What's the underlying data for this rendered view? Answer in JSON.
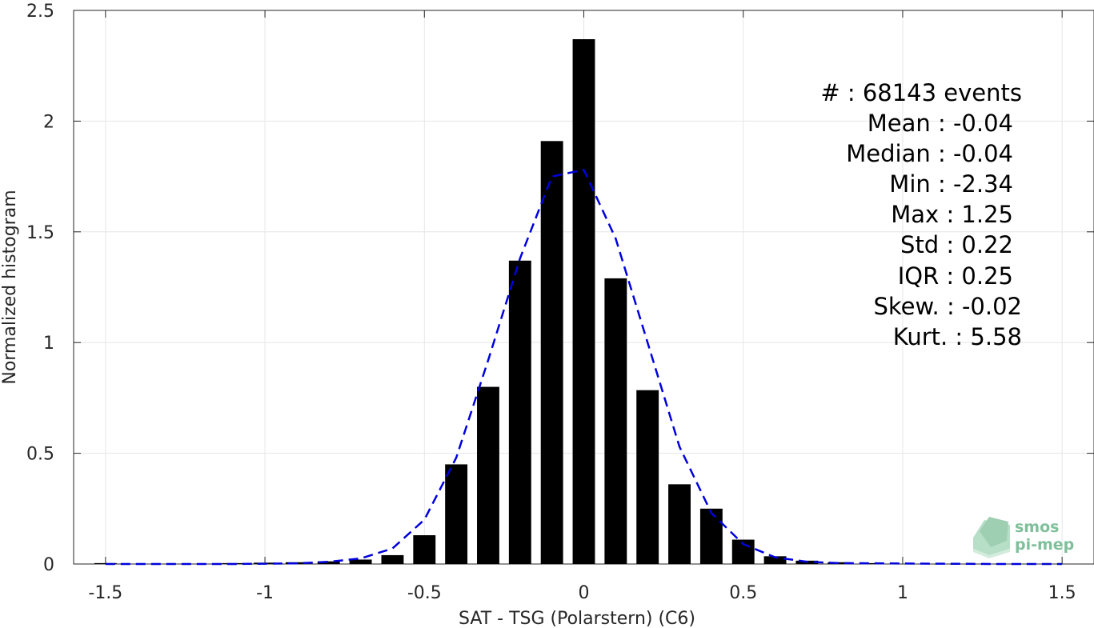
{
  "chart_data": {
    "type": "bar",
    "xlabel": "SAT - TSG (Polarstern) (C6)",
    "ylabel": "Normalized histogram",
    "xlim": [
      -1.6,
      1.6
    ],
    "ylim": [
      0,
      2.5
    ],
    "xticks": [
      "-1.5",
      "-1",
      "-0.5",
      "0",
      "0.5",
      "1",
      "1.5"
    ],
    "xtick_values": [
      -1.5,
      -1,
      -0.5,
      0,
      0.5,
      1,
      1.5
    ],
    "yticks": [
      "0",
      "0.5",
      "1",
      "1.5",
      "2",
      "2.5"
    ],
    "ytick_values": [
      0,
      0.5,
      1,
      1.5,
      2,
      2.5
    ],
    "grid": true,
    "bar_width": 0.07,
    "bar_color": "#000000",
    "fit_color": "#0000dd",
    "x": [
      -1.5,
      -1.1,
      -1.0,
      -0.9,
      -0.8,
      -0.7,
      -0.6,
      -0.5,
      -0.4,
      -0.3,
      -0.2,
      -0.1,
      0.0,
      0.1,
      0.2,
      0.3,
      0.4,
      0.5,
      0.6,
      0.7,
      0.8,
      0.9
    ],
    "values": [
      0.004,
      0.004,
      0.006,
      0.008,
      0.012,
      0.02,
      0.04,
      0.13,
      0.45,
      0.8,
      1.37,
      1.91,
      2.37,
      1.29,
      0.785,
      0.36,
      0.25,
      0.11,
      0.035,
      0.015,
      0.008,
      0.004
    ],
    "fit_curve": {
      "x": [
        -1.5,
        -1.3,
        -1.1,
        -0.9,
        -0.8,
        -0.7,
        -0.6,
        -0.5,
        -0.4,
        -0.3,
        -0.2,
        -0.1,
        0.0,
        0.1,
        0.2,
        0.3,
        0.4,
        0.5,
        0.6,
        0.7,
        0.8,
        1.0,
        1.3,
        1.5
      ],
      "y": [
        0.0,
        0.0,
        0.0,
        0.003,
        0.01,
        0.025,
        0.07,
        0.2,
        0.48,
        0.92,
        1.38,
        1.75,
        1.78,
        1.47,
        1.0,
        0.53,
        0.23,
        0.09,
        0.03,
        0.01,
        0.004,
        0.002,
        0.0,
        0.0
      ]
    }
  },
  "stats": [
    "#  : 68143 events",
    "Mean : -0.04",
    "Median : -0.04",
    "Min : -2.34",
    "Max : 1.25",
    "Std : 0.22",
    "IQR : 0.25",
    "Skew. : -0.02",
    "Kurt. : 5.58"
  ],
  "logo": {
    "line1": "smos",
    "line2": "pi-mep",
    "color": "#7fbf9a"
  }
}
